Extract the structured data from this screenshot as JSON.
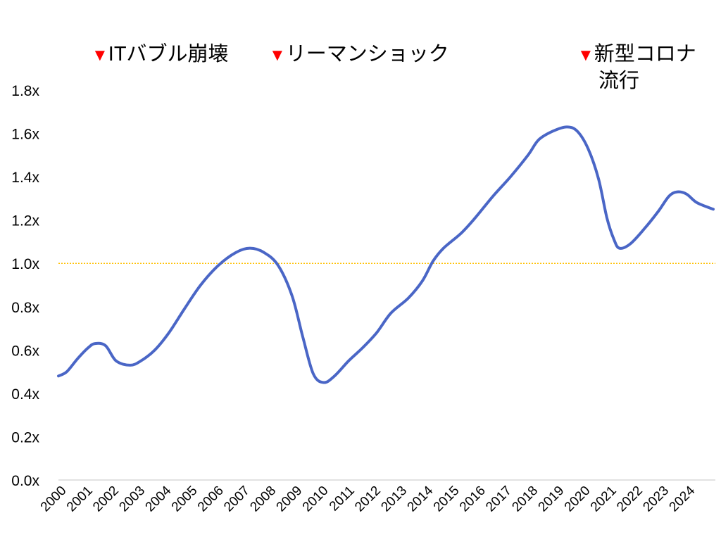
{
  "chart_data": {
    "type": "line",
    "title": "",
    "xlabel": "",
    "ylabel": "",
    "ylim": [
      0,
      1.8
    ],
    "y_ticks": [
      "0.0x",
      "0.2x",
      "0.4x",
      "0.6x",
      "0.8x",
      "1.0x",
      "1.2x",
      "1.4x",
      "1.6x",
      "1.8x"
    ],
    "x_ticks": [
      "2000",
      "2001",
      "2002",
      "2003",
      "2004",
      "2005",
      "2006",
      "2007",
      "2008",
      "2009",
      "2010",
      "2011",
      "2012",
      "2013",
      "2014",
      "2015",
      "2016",
      "2017",
      "2018",
      "2019",
      "2020",
      "2021",
      "2022",
      "2023",
      "2024"
    ],
    "grid": false,
    "reference_line": {
      "y": 1.0,
      "color": "#ffc000",
      "style": "dotted"
    },
    "series_color": "#4a66c6",
    "x": [
      2000.0,
      2000.32,
      2000.73,
      2001.13,
      2001.4,
      2001.8,
      2002.2,
      2002.74,
      2003.15,
      2003.68,
      2004.22,
      2004.81,
      2005.43,
      2006.1,
      2006.77,
      2007.31,
      2007.85,
      2008.39,
      2008.92,
      2009.33,
      2009.73,
      2010.13,
      2010.54,
      2011.08,
      2011.61,
      2012.15,
      2012.69,
      2013.36,
      2013.9,
      2014.3,
      2014.7,
      2015.38,
      2015.91,
      2016.59,
      2017.26,
      2017.93,
      2018.33,
      2018.87,
      2019.41,
      2019.81,
      2020.22,
      2020.62,
      2020.94,
      2021.21,
      2021.42,
      2021.83,
      2022.37,
      2022.9,
      2023.31,
      2023.63,
      2023.98,
      2024.38,
      2025.0
    ],
    "y": [
      0.48,
      0.5,
      0.56,
      0.61,
      0.63,
      0.62,
      0.55,
      0.53,
      0.55,
      0.6,
      0.68,
      0.79,
      0.9,
      0.99,
      1.05,
      1.07,
      1.05,
      0.99,
      0.85,
      0.66,
      0.49,
      0.45,
      0.48,
      0.55,
      0.61,
      0.68,
      0.77,
      0.84,
      0.92,
      1.01,
      1.07,
      1.14,
      1.21,
      1.31,
      1.4,
      1.5,
      1.57,
      1.61,
      1.63,
      1.61,
      1.53,
      1.39,
      1.21,
      1.11,
      1.07,
      1.09,
      1.16,
      1.24,
      1.31,
      1.33,
      1.32,
      1.28,
      1.25
    ],
    "annotations": [
      {
        "marker": "▼",
        "marker_color": "#ff0000",
        "text": "ITバブル崩壊"
      },
      {
        "marker": "▼",
        "marker_color": "#ff0000",
        "text": "リーマンショック"
      },
      {
        "marker": "▼",
        "marker_color": "#ff0000",
        "text": "新型コロナ",
        "text2": "流行"
      }
    ]
  }
}
